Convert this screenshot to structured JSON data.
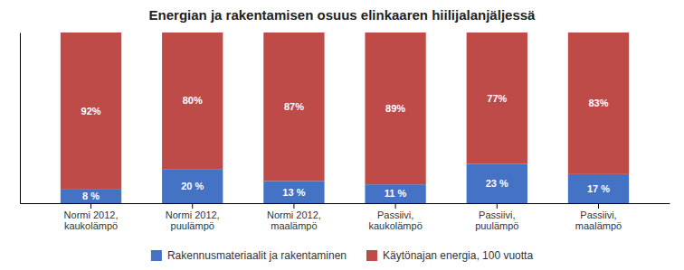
{
  "chart_data": {
    "type": "bar",
    "stacked": true,
    "title": "Energian ja rakentamisen osuus elinkaaren hiilijalanjäljessä",
    "categories": [
      "Normi 2012,\nkaukolämpö",
      "Normi 2012,\npuulämpö",
      "Normi 2012,\nmaalämpö",
      "Passiivi,\nkaukolämpö",
      "Passiivi,\npuulämpö",
      "Passiivi,\nmaalämpö"
    ],
    "series": [
      {
        "name": "Rakennusmateriaalit ja rakentaminen",
        "color": "#4472C4",
        "values": [
          8,
          20,
          13,
          11,
          23,
          17
        ],
        "value_labels": [
          "8 %",
          "20 %",
          "13 %",
          "11 %",
          "23 %",
          "17 %"
        ]
      },
      {
        "name": "Käytönajan energia, 100 vuotta",
        "color": "#BE4B48",
        "values": [
          92,
          80,
          87,
          89,
          77,
          83
        ],
        "value_labels": [
          "92%",
          "80%",
          "87%",
          "89%",
          "77%",
          "83%"
        ]
      }
    ],
    "ylim": [
      0,
      100
    ],
    "data_labels": true,
    "tick_labels": "x",
    "legend": "bottom"
  }
}
